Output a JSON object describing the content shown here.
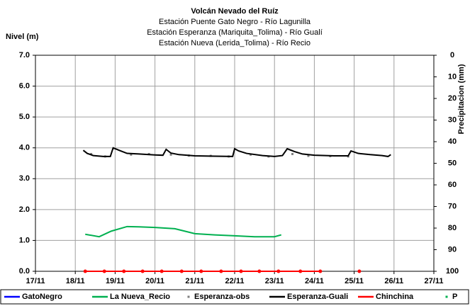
{
  "chart_data": {
    "type": "line",
    "title": "Volcán Nevado del Ruíz",
    "subtitle": [
      "Estación Puente Gato Negro - Río Lagunilla",
      "Estación Esperanza (Mariquita_Tolima) - Río Gualí",
      "Estación Nueva (Lerida_Tolima) - Río Recio"
    ],
    "y_label": "Nivel (m)",
    "y2_label": "Precipitacion (mm)",
    "xlim": [
      17,
      27
    ],
    "xticks": [
      {
        "value": 17,
        "label": "17/11"
      },
      {
        "value": 18,
        "label": "18/11"
      },
      {
        "value": 19,
        "label": "19/11"
      },
      {
        "value": 20,
        "label": "20/11"
      },
      {
        "value": 21,
        "label": "21/11"
      },
      {
        "value": 22,
        "label": "22/11"
      },
      {
        "value": 23,
        "label": "23/11"
      },
      {
        "value": 24,
        "label": "24/11"
      },
      {
        "value": 25,
        "label": "25/11"
      },
      {
        "value": 26,
        "label": "26/11"
      },
      {
        "value": 27,
        "label": "27/11"
      }
    ],
    "ylim": [
      0,
      7
    ],
    "yticks": [
      {
        "value": 0,
        "label": "0.0"
      },
      {
        "value": 1,
        "label": "1.0"
      },
      {
        "value": 2,
        "label": "2.0"
      },
      {
        "value": 3,
        "label": "3.0"
      },
      {
        "value": 4,
        "label": "4.0"
      },
      {
        "value": 5,
        "label": "5.0"
      },
      {
        "value": 6,
        "label": "6.0"
      },
      {
        "value": 7,
        "label": "7.0"
      }
    ],
    "y2lim": [
      100,
      0
    ],
    "y2ticks": [
      0,
      10,
      20,
      30,
      40,
      50,
      60,
      70,
      80,
      90,
      100
    ],
    "grid": true,
    "legend": "bottom",
    "series": [
      {
        "name": "GatoNegro",
        "color": "#0000ff",
        "style": "line",
        "x": [],
        "values": []
      },
      {
        "name": "La Nueva_Recio",
        "color": "#00b050",
        "style": "line",
        "x": [
          18.25,
          18.6,
          18.9,
          19.3,
          19.6,
          20.0,
          20.5,
          21.0,
          21.5,
          22.0,
          22.5,
          23.0,
          23.17
        ],
        "values": [
          1.2,
          1.12,
          1.3,
          1.45,
          1.44,
          1.42,
          1.38,
          1.22,
          1.18,
          1.15,
          1.12,
          1.12,
          1.18
        ]
      },
      {
        "name": "Esperanza-obs",
        "color": "#7f7f7f",
        "style": "markers",
        "x": [
          18.4,
          18.75,
          19.4,
          19.85,
          20.4,
          20.85,
          21.4,
          21.85,
          22.4,
          22.85,
          23.45,
          23.85,
          24.4,
          24.85
        ],
        "values": [
          3.8,
          3.72,
          3.78,
          3.8,
          3.78,
          3.75,
          3.74,
          3.72,
          3.78,
          3.72,
          3.8,
          3.74,
          3.73,
          3.72
        ]
      },
      {
        "name": "Esperanza-Guali",
        "color": "#000000",
        "style": "line",
        "x": [
          18.2,
          18.3,
          18.45,
          18.7,
          18.88,
          18.95,
          19.1,
          19.3,
          19.6,
          20.0,
          20.2,
          20.28,
          20.4,
          20.6,
          21.0,
          21.5,
          21.95,
          22.0,
          22.1,
          22.3,
          22.7,
          23.0,
          23.2,
          23.32,
          23.5,
          23.7,
          24.0,
          24.5,
          24.85,
          24.92,
          25.1,
          25.4,
          25.7,
          25.85,
          25.92
        ],
        "values": [
          3.92,
          3.82,
          3.75,
          3.72,
          3.72,
          4.0,
          3.92,
          3.82,
          3.8,
          3.77,
          3.76,
          3.95,
          3.83,
          3.78,
          3.74,
          3.73,
          3.72,
          3.97,
          3.9,
          3.82,
          3.75,
          3.72,
          3.75,
          3.97,
          3.88,
          3.8,
          3.76,
          3.74,
          3.74,
          3.9,
          3.82,
          3.78,
          3.75,
          3.72,
          3.78
        ]
      },
      {
        "name": "Chinchina",
        "color": "#ff0000",
        "style": "line+markers",
        "x": [
          18.25,
          18.73,
          19.22,
          19.69,
          20.17,
          20.67,
          21.16,
          21.66,
          22.16,
          22.62,
          23.1,
          23.65,
          24.15,
          24.6,
          25.13
        ],
        "values": [
          0,
          0,
          0,
          0,
          0,
          0,
          0,
          0,
          0,
          0,
          0,
          0,
          0,
          null,
          0
        ]
      },
      {
        "name": "P",
        "color": "#00b050",
        "style": "markers",
        "x": [],
        "values": []
      }
    ]
  }
}
